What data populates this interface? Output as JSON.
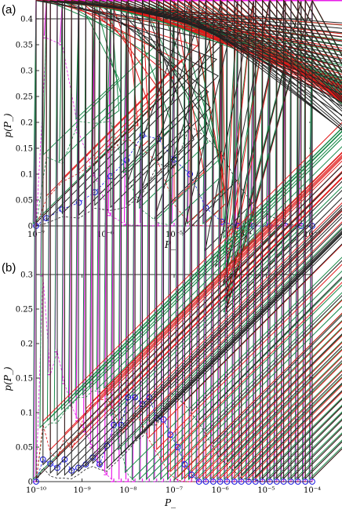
{
  "panels": [
    {
      "label": "(a)",
      "chart_data": {
        "type": "line",
        "xlabel": "P_",
        "ylabel": "p(P_)",
        "xscale": "log",
        "ylim": [
          0,
          0.4
        ],
        "yticks": [
          0,
          0.05,
          0.1,
          0.15,
          0.2,
          0.25,
          0.3,
          0.35,
          0.4
        ],
        "ytick_labels": [
          "0",
          "0.05",
          "0.1",
          "0.15",
          "0.2",
          "0.25",
          "0.3",
          "0.35",
          "0.4"
        ],
        "xticks_exp": [
          -7,
          -6,
          -5,
          -4,
          -3
        ],
        "xtick_labels": [
          "10⁻⁷",
          "10⁻⁶",
          "10⁻⁵",
          "10⁻⁴",
          "10⁻³"
        ],
        "xlim_exp": [
          -7,
          -3
        ],
        "x_exp": [
          -7.0,
          -6.85,
          -6.62,
          -6.38,
          -6.15,
          -5.92,
          -5.69,
          -5.46,
          -5.23,
          -5.0,
          -4.77,
          -4.54,
          -4.31,
          -4.08,
          -3.85,
          -3.62,
          -3.39,
          -3.16,
          -3.0
        ],
        "grid": false,
        "legend": "none",
        "series": [
          {
            "marker": "star",
            "color": "#e81ee8",
            "values": [
              0.0,
              0.363,
              0.35,
              0.18,
              0.097,
              0.02,
              0.002,
              0.001,
              0.0,
              0.0,
              0.0,
              0.0,
              0.0,
              0.0,
              0.0,
              0.0,
              0.0,
              0.0,
              0.0
            ]
          },
          {
            "marker": "triangle-down",
            "color": "#1a8a4a",
            "values": [
              0.0,
              0.133,
              0.12,
              0.202,
              0.198,
              0.202,
              0.098,
              0.03,
              0.006,
              0.0,
              0.0,
              0.0,
              0.0,
              0.0,
              0.0,
              0.0,
              0.0,
              0.0,
              0.0
            ]
          },
          {
            "marker": "diamond",
            "color": "#e01818",
            "values": [
              0.0,
              0.052,
              0.085,
              0.102,
              0.122,
              0.145,
              0.17,
              0.148,
              0.122,
              0.042,
              0.002,
              0.0,
              0.0,
              0.0,
              0.0,
              0.0,
              0.0,
              0.0,
              0.0
            ]
          },
          {
            "marker": "circle",
            "color": "#1a1ae0",
            "values": [
              0.0,
              0.015,
              0.032,
              0.045,
              0.065,
              0.096,
              0.127,
              0.175,
              0.168,
              0.128,
              0.1,
              0.035,
              0.008,
              0.0,
              0.0,
              0.0,
              0.0,
              0.0,
              0.0
            ]
          },
          {
            "marker": "triangle-up",
            "color": "#222222",
            "values": [
              0.0,
              0.005,
              0.018,
              0.015,
              0.034,
              0.03,
              0.036,
              0.062,
              0.12,
              0.112,
              0.193,
              0.172,
              0.138,
              0.083,
              0.04,
              0.02,
              0.005,
              0.0,
              0.0
            ]
          }
        ]
      }
    },
    {
      "label": "(b)",
      "chart_data": {
        "type": "line",
        "xlabel": "P_",
        "ylabel": "p(P_)",
        "xscale": "log",
        "ylim": [
          0,
          0.3
        ],
        "yticks": [
          0,
          0.05,
          0.1,
          0.15,
          0.2,
          0.25,
          0.3
        ],
        "ytick_labels": [
          "0",
          "0.05",
          "0.1",
          "0.15",
          "0.2",
          "0.25",
          "0.3"
        ],
        "xticks_exp": [
          -10,
          -9,
          -8,
          -7,
          -6,
          -5,
          -4
        ],
        "xtick_labels": [
          "10⁻¹⁰",
          "10⁻⁹",
          "10⁻⁸",
          "10⁻⁷",
          "10⁻⁶",
          "10⁻⁵",
          "10⁻⁴"
        ],
        "xlim_exp": [
          -10,
          -4
        ],
        "x_exp": [
          -10.0,
          -9.85,
          -9.69,
          -9.54,
          -9.38,
          -9.23,
          -9.08,
          -8.92,
          -8.77,
          -8.62,
          -8.46,
          -8.31,
          -8.15,
          -8.0,
          -7.85,
          -7.69,
          -7.54,
          -7.38,
          -7.23,
          -7.08,
          -6.92,
          -6.77,
          -6.62,
          -6.46,
          -6.31,
          -6.15,
          -6.0,
          -5.85,
          -5.69,
          -5.54,
          -5.38,
          -5.23,
          -5.08,
          -4.92,
          -4.77,
          -4.62,
          -4.46,
          -4.31,
          -4.15,
          -4.0
        ],
        "grid": false,
        "legend": "none",
        "series": [
          {
            "marker": "star",
            "color": "#e81ee8",
            "values": [
              0.0,
              0.298,
              0.155,
              0.188,
              0.142,
              0.11,
              0.088,
              0.072,
              0.05,
              0.024,
              0.01,
              0.0,
              0.0,
              0.0,
              0.0,
              0.0,
              0.0,
              0.0,
              0.0,
              0.0,
              0.0,
              0.0,
              0.0,
              0.0,
              0.0,
              0.0,
              0.0,
              0.0,
              0.0,
              0.0,
              0.0,
              0.0,
              0.0,
              0.0,
              0.0,
              0.0,
              0.0,
              0.0,
              0.0,
              0.0
            ]
          },
          {
            "marker": "triangle-down",
            "color": "#1a8a4a",
            "values": [
              0.0,
              0.075,
              0.085,
              0.085,
              0.101,
              0.111,
              0.122,
              0.122,
              0.132,
              0.13,
              0.132,
              0.092,
              0.043,
              0.01,
              0.0,
              0.0,
              0.0,
              0.0,
              0.0,
              0.0,
              0.0,
              0.0,
              0.0,
              0.0,
              0.0,
              0.0,
              0.0,
              0.0,
              0.0,
              0.0,
              0.0,
              0.0,
              0.0,
              0.0,
              0.0,
              0.0,
              0.0,
              0.0,
              0.0,
              0.0
            ]
          },
          {
            "marker": "diamond",
            "color": "#e01818",
            "values": [
              0.0,
              0.083,
              0.042,
              0.033,
              0.065,
              0.045,
              0.072,
              0.101,
              0.112,
              0.118,
              0.12,
              0.105,
              0.068,
              0.082,
              0.1,
              0.083,
              0.06,
              0.042,
              0.026,
              0.01,
              0.002,
              0.0,
              0.0,
              0.0,
              0.0,
              0.0,
              0.0,
              0.0,
              0.0,
              0.0,
              0.0,
              0.0,
              0.0,
              0.0,
              0.0,
              0.0,
              0.0,
              0.0,
              0.0,
              0.0
            ]
          },
          {
            "marker": "circle",
            "color": "#1a1ae0",
            "values": [
              0.0,
              0.032,
              0.026,
              0.02,
              0.032,
              0.016,
              0.02,
              0.025,
              0.035,
              0.025,
              0.052,
              0.082,
              0.082,
              0.122,
              0.122,
              0.112,
              0.122,
              0.092,
              0.09,
              0.068,
              0.05,
              0.025,
              0.01,
              0.0,
              0.0,
              0.0,
              0.0,
              0.0,
              0.0,
              0.0,
              0.0,
              0.0,
              0.0,
              0.0,
              0.0,
              0.0,
              0.0,
              0.0,
              0.0,
              0.0
            ]
          },
          {
            "marker": "triangle-up",
            "color": "#222222",
            "values": [
              0.0,
              0.02,
              0.008,
              0.005,
              0.005,
              0.004,
              0.01,
              0.018,
              0.022,
              0.018,
              0.015,
              0.025,
              0.035,
              0.045,
              0.058,
              0.065,
              0.082,
              0.082,
              0.1,
              0.13,
              0.12,
              0.112,
              0.098,
              0.085,
              0.068,
              0.05,
              0.033,
              0.025,
              0.015,
              0.005,
              0.003,
              0.002,
              0.0,
              0.0,
              0.0,
              0.0,
              0.0,
              0.0,
              0.0,
              0.0
            ]
          }
        ]
      }
    }
  ]
}
